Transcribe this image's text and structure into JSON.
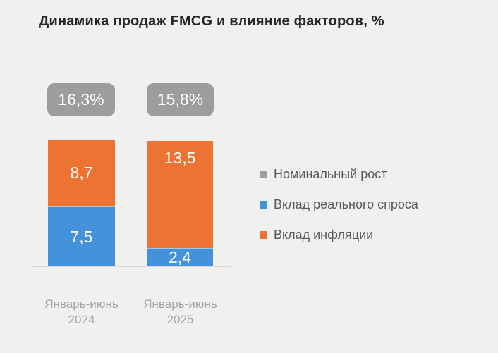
{
  "chart_data": {
    "type": "bar",
    "stacked": true,
    "title": "Динамика продаж FMCG и влияние факторов, %",
    "categories": [
      "Январь-июнь 2024",
      "Январь-июнь 2025"
    ],
    "series": [
      {
        "name": "Вклад реального спроса",
        "color": "#4392DB",
        "values": [
          7.5,
          2.4
        ]
      },
      {
        "name": "Вклад инфляции",
        "color": "#EC7331",
        "values": [
          8.7,
          13.5
        ]
      }
    ],
    "totals": {
      "name": "Номинальный рост",
      "color": "#9D9D9C",
      "values": [
        16.3,
        15.8
      ]
    },
    "value_labels": {
      "total_2024": "16,3%",
      "total_2025": "15,8%",
      "inflation_2024": "8,7",
      "demand_2024": "7,5",
      "inflation_2025": "13,5",
      "demand_2025": "2,4"
    },
    "legend": [
      {
        "label": "Номинальный рост",
        "color": "#9D9D9C"
      },
      {
        "label": "Вклад реального спроса",
        "color": "#4392DB"
      },
      {
        "label": "Вклад инфляции",
        "color": "#EC7331"
      }
    ],
    "legend_position": "right",
    "grid": false,
    "ylim": [
      0,
      17
    ],
    "colors": {
      "background": "#F0F0EE",
      "title_text": "#262626",
      "axis_label_text": "#A6A6A6",
      "legend_text": "#595959",
      "baseline": "#D9D9D7",
      "value_text": "#FFFFFF"
    }
  }
}
